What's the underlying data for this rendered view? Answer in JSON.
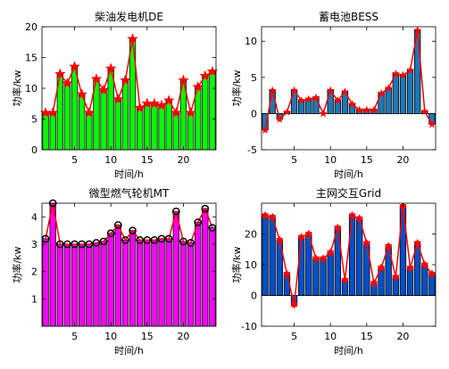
{
  "chart_data": [
    {
      "type": "bar",
      "title": "柴油发电机DE",
      "xlabel": "时间/h",
      "ylabel": "功率/kw",
      "x": [
        1,
        2,
        3,
        4,
        5,
        6,
        7,
        8,
        9,
        10,
        11,
        12,
        13,
        14,
        15,
        16,
        17,
        18,
        19,
        20,
        21,
        22,
        23,
        24
      ],
      "values": [
        6,
        6,
        12.3,
        10.8,
        13.5,
        9,
        6,
        11.5,
        9.7,
        13.2,
        8.2,
        11.3,
        18,
        6.8,
        7.5,
        7.5,
        7.2,
        8,
        6,
        11.3,
        6,
        10.2,
        12,
        12.7
      ],
      "xlim": [
        0.5,
        24.5
      ],
      "ylim": [
        0,
        20
      ],
      "xticks": [
        5,
        10,
        15,
        20
      ],
      "yticks": [
        0,
        5,
        10,
        15,
        20
      ],
      "bar_color": "#00ff00",
      "line_color": "#ff0000",
      "marker": "star"
    },
    {
      "type": "bar",
      "title": "蓄电池BESS",
      "xlabel": "时间/h",
      "ylabel": "功率/kw",
      "x": [
        1,
        2,
        3,
        4,
        5,
        6,
        7,
        8,
        9,
        10,
        11,
        12,
        13,
        14,
        15,
        16,
        17,
        18,
        19,
        20,
        21,
        22,
        23,
        24
      ],
      "values": [
        -2.3,
        3.2,
        -0.8,
        0.2,
        3.2,
        1.8,
        2,
        2.2,
        0,
        3.2,
        1.8,
        3,
        1.3,
        0.5,
        0.5,
        0.5,
        2.8,
        3.5,
        5.5,
        5.3,
        6,
        11.5,
        0.3,
        -1.5
      ],
      "xlim": [
        0.5,
        24.5
      ],
      "ylim": [
        -5,
        12
      ],
      "xticks": [
        5,
        10,
        15,
        20
      ],
      "yticks": [
        -5,
        0,
        5,
        10
      ],
      "bar_color": "#1f77b4",
      "line_color": "#ff0000",
      "marker": "star"
    },
    {
      "type": "bar",
      "title": "微型燃气轮机MT",
      "xlabel": "时间/h",
      "ylabel": "功率/kw",
      "x": [
        1,
        2,
        3,
        4,
        5,
        6,
        7,
        8,
        9,
        10,
        11,
        12,
        13,
        14,
        15,
        16,
        17,
        18,
        19,
        20,
        21,
        22,
        23,
        24
      ],
      "values": [
        3.2,
        4.5,
        3,
        3,
        3,
        3,
        3,
        3.05,
        3.1,
        3.4,
        3.7,
        3.15,
        3.5,
        3.15,
        3.15,
        3.15,
        3.2,
        3.2,
        4.2,
        3.1,
        3.05,
        3.8,
        4.3,
        3.6
      ],
      "xlim": [
        0.5,
        24.5
      ],
      "ylim": [
        0,
        4.5
      ],
      "xticks": [
        5,
        10,
        15,
        20
      ],
      "yticks": [
        1,
        2,
        3,
        4
      ],
      "bar_color": "#ff00ff",
      "line_color": "#ff0000",
      "marker": "circle"
    },
    {
      "type": "bar",
      "title": "主网交互Grid",
      "xlabel": "时间/h",
      "ylabel": "功率/kw",
      "x": [
        1,
        2,
        3,
        4,
        5,
        6,
        7,
        8,
        9,
        10,
        11,
        12,
        13,
        14,
        15,
        16,
        17,
        18,
        19,
        20,
        21,
        22,
        23,
        24
      ],
      "values": [
        26,
        25.5,
        18,
        7,
        -3,
        19,
        20,
        12,
        12,
        14,
        22,
        5,
        26,
        25,
        17,
        4,
        9,
        16,
        6,
        29,
        9,
        17,
        10,
        7
      ],
      "xlim": [
        0.5,
        24.5
      ],
      "ylim": [
        -10,
        30
      ],
      "xticks": [
        5,
        10,
        15,
        20
      ],
      "yticks": [
        -10,
        0,
        10,
        20
      ],
      "bar_color": "#0050c8",
      "line_color": "#ff0000",
      "marker": "hexagram"
    }
  ]
}
